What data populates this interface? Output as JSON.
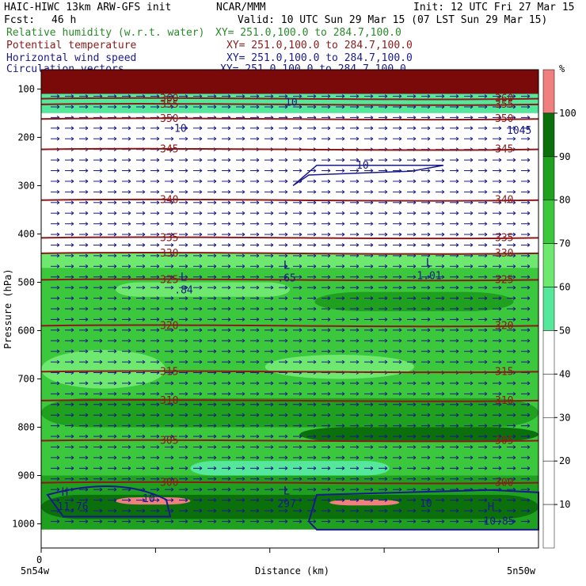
{
  "header": {
    "model": "HAIC-HIWC 13km ARW-GFS init",
    "org": "NCAR/MMM",
    "init": "Init: 12 UTC Fri 27 Mar 15",
    "fcst_label": "Fcst:",
    "fcst_value": "46 h",
    "valid": "Valid: 10 UTC Sun 29 Mar 15 (07 LST Sun 29 Mar 15)"
  },
  "fields": [
    {
      "name": "Relative humidity (w.r.t. water)",
      "xy": "XY= 251.0,100.0 to 284.7,100.0",
      "color": "#2a8a2a"
    },
    {
      "name": "Potential temperature",
      "xy": "XY= 251.0,100.0 to 284.7,100.0",
      "color": "#8b1a1a"
    },
    {
      "name": "Horizontal wind speed",
      "xy": "XY= 251.0,100.0 to 284.7,100.0",
      "color": "#1a1a8b"
    },
    {
      "name": "Circulation vectors",
      "xy": "XY= 251.0,100.0 to 284.7,100.0",
      "color": "#1a1a8b"
    }
  ],
  "colorbar": {
    "unit": "%",
    "levels": [
      10,
      20,
      30,
      40,
      50,
      60,
      70,
      80,
      90,
      100
    ],
    "colors": [
      "#ffffff",
      "#ffffff",
      "#ffffff",
      "#ffffff",
      "#ffffff",
      "#55e89a",
      "#6fe86f",
      "#3cc83c",
      "#1fa01f",
      "#0b700b",
      "#f08080"
    ]
  },
  "chart_data": {
    "type": "heatmap",
    "xlabel": "Distance (km)",
    "ylabel": "Pressure (hPa)",
    "x_left_label": "5n54w",
    "x_right_label": "5n50w",
    "x_zero": "0",
    "y_ticks": [
      100,
      200,
      300,
      400,
      500,
      600,
      700,
      800,
      900,
      1000
    ],
    "ylim": [
      1050,
      60
    ],
    "theta_labels": [
      {
        "text": "360",
        "p": 120
      },
      {
        "text": "355",
        "p": 132
      },
      {
        "text": "350",
        "p": 162
      },
      {
        "text": "345",
        "p": 225
      },
      {
        "text": "340",
        "p": 330
      },
      {
        "text": "335",
        "p": 408
      },
      {
        "text": "330",
        "p": 440
      },
      {
        "text": "325",
        "p": 495
      },
      {
        "text": "320",
        "p": 590
      },
      {
        "text": "315",
        "p": 685
      },
      {
        "text": "310",
        "p": 745
      },
      {
        "text": "305",
        "p": 828
      },
      {
        "text": "300",
        "p": 915
      }
    ],
    "lows": [
      {
        "symbol": "L",
        "value": ".84",
        "p": 520
      },
      {
        "symbol": "L",
        "value": ".65",
        "p": 495
      },
      {
        "symbol": "L",
        "value": "1.01",
        "p": 490
      },
      {
        "symbol": "L",
        "value": "297",
        "p": 962
      }
    ],
    "highs": [
      {
        "symbol": "H",
        "value": "11.76",
        "p": 968
      },
      {
        "symbol": "H",
        "value": "10.85",
        "p": 998
      }
    ],
    "wind_labels": [
      {
        "text": "10",
        "p": 128
      },
      {
        "text": "10",
        "p": 182
      },
      {
        "text": "10",
        "p": 258
      },
      {
        "text": "10",
        "p": 948
      },
      {
        "text": "10",
        "p": 958
      },
      {
        "text": "1045",
        "p": 186
      }
    ]
  }
}
